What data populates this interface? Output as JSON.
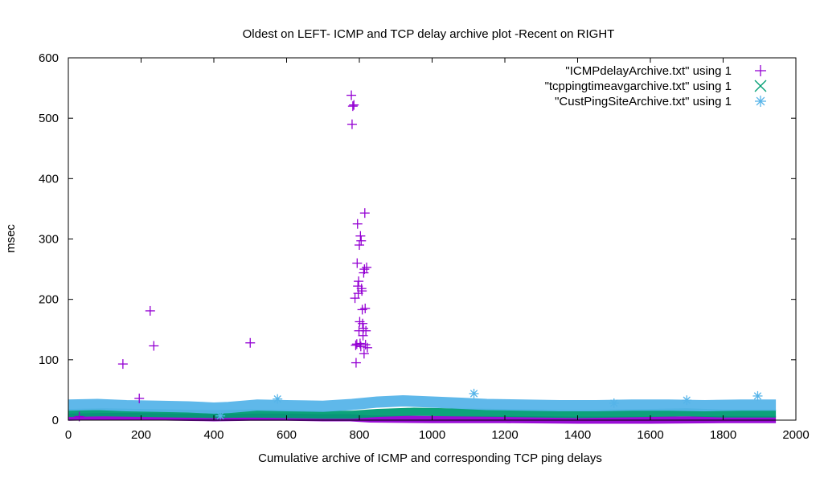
{
  "chart_data": {
    "type": "scatter",
    "title": "Oldest on LEFT- ICMP and TCP delay archive plot -Recent on RIGHT",
    "xlabel": "Cumulative archive of ICMP and corresponding TCP ping delays",
    "ylabel": "msec",
    "xlim": [
      0,
      2000
    ],
    "ylim": [
      0,
      600
    ],
    "x_ticks": [
      0,
      200,
      400,
      600,
      800,
      1000,
      1200,
      1400,
      1600,
      1800,
      2000
    ],
    "y_ticks": [
      0,
      100,
      200,
      300,
      400,
      500,
      600
    ],
    "grid": false,
    "legend_position": "top-right",
    "series": [
      {
        "name": "\"ICMPdelayArchive.txt\" using 1",
        "marker": "plus",
        "color": "#9400d3",
        "baseline": [
          [
            0,
            5
          ],
          [
            100,
            6
          ],
          [
            200,
            6
          ],
          [
            300,
            5
          ],
          [
            400,
            4
          ],
          [
            500,
            5
          ],
          [
            600,
            5
          ],
          [
            700,
            4
          ],
          [
            775,
            4
          ],
          [
            830,
            2
          ],
          [
            1000,
            1
          ],
          [
            1200,
            1
          ],
          [
            1400,
            0
          ],
          [
            1600,
            0
          ],
          [
            1800,
            1
          ],
          [
            1945,
            1
          ]
        ],
        "points": [
          [
            30,
            6
          ],
          [
            150,
            93
          ],
          [
            195,
            36
          ],
          [
            225,
            181
          ],
          [
            235,
            123
          ],
          [
            500,
            128
          ],
          [
            778,
            538
          ],
          [
            780,
            490
          ],
          [
            782,
            520
          ],
          [
            785,
            522
          ],
          [
            788,
            202
          ],
          [
            790,
            124
          ],
          [
            791,
            95
          ],
          [
            793,
            126
          ],
          [
            794,
            260
          ],
          [
            795,
            325
          ],
          [
            796,
            222
          ],
          [
            797,
            210
          ],
          [
            798,
            230
          ],
          [
            799,
            148
          ],
          [
            800,
            290
          ],
          [
            801,
            163
          ],
          [
            802,
            127
          ],
          [
            803,
            305
          ],
          [
            804,
            122
          ],
          [
            805,
            297
          ],
          [
            806,
            218
          ],
          [
            807,
            214
          ],
          [
            808,
            183
          ],
          [
            809,
            160
          ],
          [
            810,
            140
          ],
          [
            811,
            152
          ],
          [
            812,
            244
          ],
          [
            813,
            110
          ],
          [
            814,
            250
          ],
          [
            815,
            343
          ],
          [
            816,
            185
          ],
          [
            817,
            125
          ],
          [
            818,
            148
          ],
          [
            820,
            253
          ],
          [
            822,
            120
          ]
        ]
      },
      {
        "name": "\"tcppingtimeavgarchive.txt\" using 1",
        "marker": "x",
        "color": "#009e73",
        "baseline": [
          [
            0,
            12
          ],
          [
            100,
            13
          ],
          [
            200,
            12
          ],
          [
            300,
            11
          ],
          [
            400,
            10
          ],
          [
            500,
            11
          ],
          [
            600,
            10
          ],
          [
            700,
            9
          ],
          [
            780,
            9
          ],
          [
            850,
            12
          ],
          [
            950,
            14
          ],
          [
            1050,
            13
          ],
          [
            1200,
            12
          ],
          [
            1300,
            11
          ],
          [
            1400,
            10
          ],
          [
            1500,
            11
          ],
          [
            1600,
            12
          ],
          [
            1700,
            13
          ],
          [
            1800,
            11
          ],
          [
            1945,
            11
          ]
        ],
        "points": []
      },
      {
        "name": "\"CustPingSiteArchive.txt\" using 1",
        "marker": "star",
        "color": "#56b4e9",
        "baseline": [
          [
            0,
            25
          ],
          [
            80,
            26
          ],
          [
            160,
            24
          ],
          [
            250,
            23
          ],
          [
            330,
            22
          ],
          [
            400,
            20
          ],
          [
            440,
            21
          ],
          [
            520,
            25
          ],
          [
            600,
            24
          ],
          [
            700,
            23
          ],
          [
            780,
            26
          ],
          [
            850,
            30
          ],
          [
            920,
            32
          ],
          [
            1000,
            30
          ],
          [
            1080,
            28
          ],
          [
            1150,
            26
          ],
          [
            1250,
            25
          ],
          [
            1350,
            24
          ],
          [
            1450,
            24
          ],
          [
            1550,
            25
          ],
          [
            1650,
            25
          ],
          [
            1750,
            24
          ],
          [
            1850,
            25
          ],
          [
            1945,
            25
          ]
        ],
        "points": [
          [
            418,
            7
          ],
          [
            575,
            35
          ],
          [
            1115,
            44
          ],
          [
            1500,
            28
          ],
          [
            1700,
            33
          ],
          [
            1895,
            40
          ]
        ]
      }
    ]
  }
}
